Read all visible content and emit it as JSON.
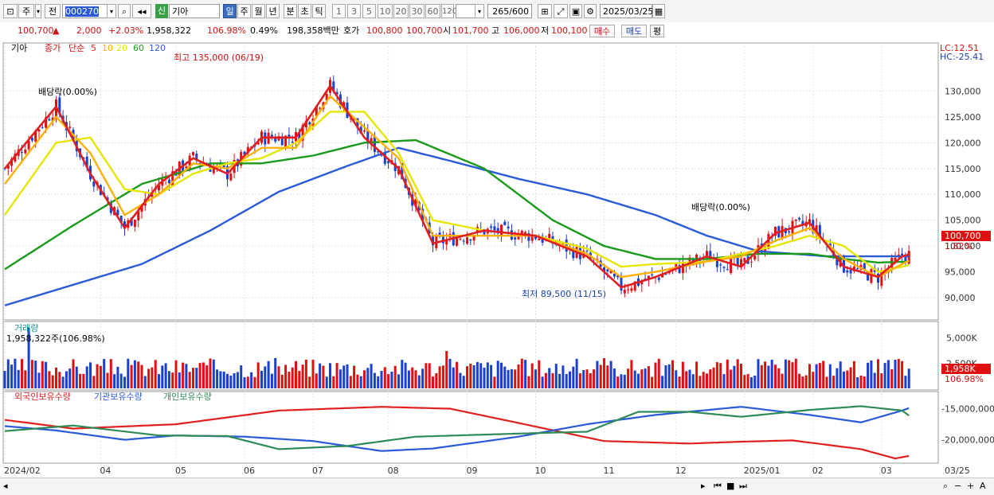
{
  "toolbar": {
    "period_week": "주",
    "prev": "전",
    "code": "000270",
    "new_badge": "신",
    "stock_name": "기아",
    "intervals": [
      "일",
      "주",
      "월",
      "년",
      "분",
      "초",
      "틱"
    ],
    "selected_interval": "일",
    "minute_opts": [
      "1",
      "3",
      "5",
      "10",
      "20",
      "30",
      "60",
      "120"
    ],
    "count": "265",
    "count_max": "/600",
    "date": "2025/03/25"
  },
  "quote": {
    "price": "100,700",
    "change_arrow": "▲",
    "change": "2,000",
    "change_pct": "+2.03%",
    "volume": "1,958,322",
    "volume_ratio": "106.98%",
    "turnover": "0.49%",
    "amount": "198,358백만",
    "hoga_label": "호가",
    "bid": "100,800",
    "ask": "100,700",
    "open_label": "시",
    "open": "101,700",
    "high_label": "고",
    "high": "106,000",
    "low_label": "저",
    "low": "100,100",
    "buy": "매수",
    "sell": "매도",
    "avg": "평"
  },
  "chart_data": [
    {
      "type": "candlestick",
      "title": "기아",
      "legend": {
        "close": "종가",
        "ma_type": "단순",
        "periods": [
          "5",
          "10",
          "20",
          "60",
          "120"
        ],
        "colors": [
          "#e02020",
          "#ffb000",
          "#e6e600",
          "#1a9a1a",
          "#2a5ad8"
        ]
      },
      "ylim": [
        86000,
        139000
      ],
      "yticks": [
        "130,000",
        "125,000",
        "120,000",
        "115,000",
        "110,000",
        "105,000",
        "100,000",
        "95,000",
        "90,000"
      ],
      "ytick_values": [
        130000,
        125000,
        120000,
        115000,
        110000,
        105000,
        100000,
        95000,
        90000
      ],
      "x_labels": [
        "2024/02",
        "04",
        "05",
        "06",
        "07",
        "08",
        "09",
        "10",
        "11",
        "12",
        "2025/01",
        "02",
        "03"
      ],
      "x_label_right": "03/25",
      "annotations": {
        "high": "최고 135,000 (06/19)",
        "low": "최저 89,500 (11/15)",
        "ex_div_1": "배당락(0.00%)",
        "ex_div_2": "배당락(0.00%)"
      },
      "lc": "LC:12.51",
      "hc": "HC:-25.41",
      "last_price": "100,700",
      "last_pct": "1.82%",
      "ma_knots": {
        "ma5": [
          [
            0,
            115000
          ],
          [
            15,
            127000
          ],
          [
            25,
            114000
          ],
          [
            35,
            103500
          ],
          [
            45,
            112000
          ],
          [
            55,
            117000
          ],
          [
            65,
            114000
          ],
          [
            75,
            121000
          ],
          [
            85,
            121000
          ],
          [
            95,
            131000
          ],
          [
            105,
            121000
          ],
          [
            115,
            115000
          ],
          [
            125,
            100500
          ],
          [
            140,
            103000
          ],
          [
            155,
            102000
          ],
          [
            170,
            98000
          ],
          [
            180,
            92000
          ],
          [
            190,
            94000
          ],
          [
            205,
            98000
          ],
          [
            215,
            96000
          ],
          [
            225,
            102500
          ],
          [
            235,
            104500
          ],
          [
            245,
            96000
          ],
          [
            255,
            94000
          ],
          [
            262,
            98000
          ],
          [
            265,
            98500
          ]
        ],
        "ma10": [
          [
            0,
            112000
          ],
          [
            15,
            125000
          ],
          [
            25,
            118000
          ],
          [
            35,
            106000
          ],
          [
            45,
            110000
          ],
          [
            55,
            116000
          ],
          [
            65,
            115000
          ],
          [
            75,
            119000
          ],
          [
            85,
            119000
          ],
          [
            95,
            129000
          ],
          [
            105,
            123000
          ],
          [
            115,
            117000
          ],
          [
            125,
            102000
          ],
          [
            140,
            102000
          ],
          [
            155,
            102000
          ],
          [
            170,
            98500
          ],
          [
            180,
            94000
          ],
          [
            190,
            95000
          ],
          [
            205,
            97000
          ],
          [
            215,
            98000
          ],
          [
            225,
            101000
          ],
          [
            235,
            103500
          ],
          [
            245,
            97500
          ],
          [
            255,
            94000
          ],
          [
            262,
            96500
          ],
          [
            265,
            97500
          ]
        ],
        "ma20": [
          [
            0,
            106000
          ],
          [
            15,
            120000
          ],
          [
            25,
            121000
          ],
          [
            35,
            111000
          ],
          [
            45,
            110000
          ],
          [
            55,
            114000
          ],
          [
            65,
            116000
          ],
          [
            75,
            117000
          ],
          [
            85,
            120000
          ],
          [
            95,
            126000
          ],
          [
            105,
            126000
          ],
          [
            115,
            118000
          ],
          [
            125,
            105000
          ],
          [
            140,
            103000
          ],
          [
            155,
            102000
          ],
          [
            170,
            99500
          ],
          [
            180,
            96000
          ],
          [
            190,
            96500
          ],
          [
            205,
            97000
          ],
          [
            215,
            98500
          ],
          [
            225,
            100000
          ],
          [
            235,
            102000
          ],
          [
            245,
            100000
          ],
          [
            255,
            95000
          ],
          [
            262,
            96000
          ],
          [
            265,
            96500
          ]
        ],
        "ma60": [
          [
            0,
            95500
          ],
          [
            20,
            104000
          ],
          [
            40,
            112000
          ],
          [
            60,
            116000
          ],
          [
            75,
            116000
          ],
          [
            90,
            117500
          ],
          [
            105,
            120000
          ],
          [
            120,
            120500
          ],
          [
            140,
            115000
          ],
          [
            160,
            105000
          ],
          [
            175,
            100000
          ],
          [
            190,
            97500
          ],
          [
            205,
            97500
          ],
          [
            220,
            98500
          ],
          [
            235,
            98500
          ],
          [
            245,
            97500
          ],
          [
            255,
            96800
          ],
          [
            265,
            97000
          ]
        ],
        "ma120": [
          [
            0,
            88500
          ],
          [
            20,
            92500
          ],
          [
            40,
            96500
          ],
          [
            60,
            103000
          ],
          [
            80,
            110500
          ],
          [
            100,
            115500
          ],
          [
            115,
            119000
          ],
          [
            130,
            116500
          ],
          [
            150,
            113000
          ],
          [
            170,
            110000
          ],
          [
            190,
            106000
          ],
          [
            205,
            102000
          ],
          [
            220,
            99000
          ],
          [
            240,
            98000
          ],
          [
            265,
            98000
          ]
        ]
      }
    },
    {
      "type": "bar",
      "title": "거래량",
      "label": "1,958,322주(106.98%)",
      "yticks": [
        "5,000K",
        "2,500K"
      ],
      "ytick_values": [
        5000000,
        2500000
      ],
      "ylim": [
        0,
        6300000
      ],
      "last": "1,958K",
      "last_pct": "106.98%"
    },
    {
      "type": "line",
      "series_names": [
        "외국인보유수량",
        "기관보유수량",
        "개인보유수량"
      ],
      "colors": [
        "#e02020",
        "#2a5ad8",
        "#2e8b57"
      ],
      "yticks": [
        "-15,000,000",
        "-20,000,000"
      ],
      "ytick_values": [
        -15000000,
        -20000000
      ],
      "ylim": [
        -23500000,
        -12500000
      ]
    }
  ],
  "bottom": {
    "zoom_out": "−",
    "zoom_in": "+",
    "font_a": "A"
  }
}
